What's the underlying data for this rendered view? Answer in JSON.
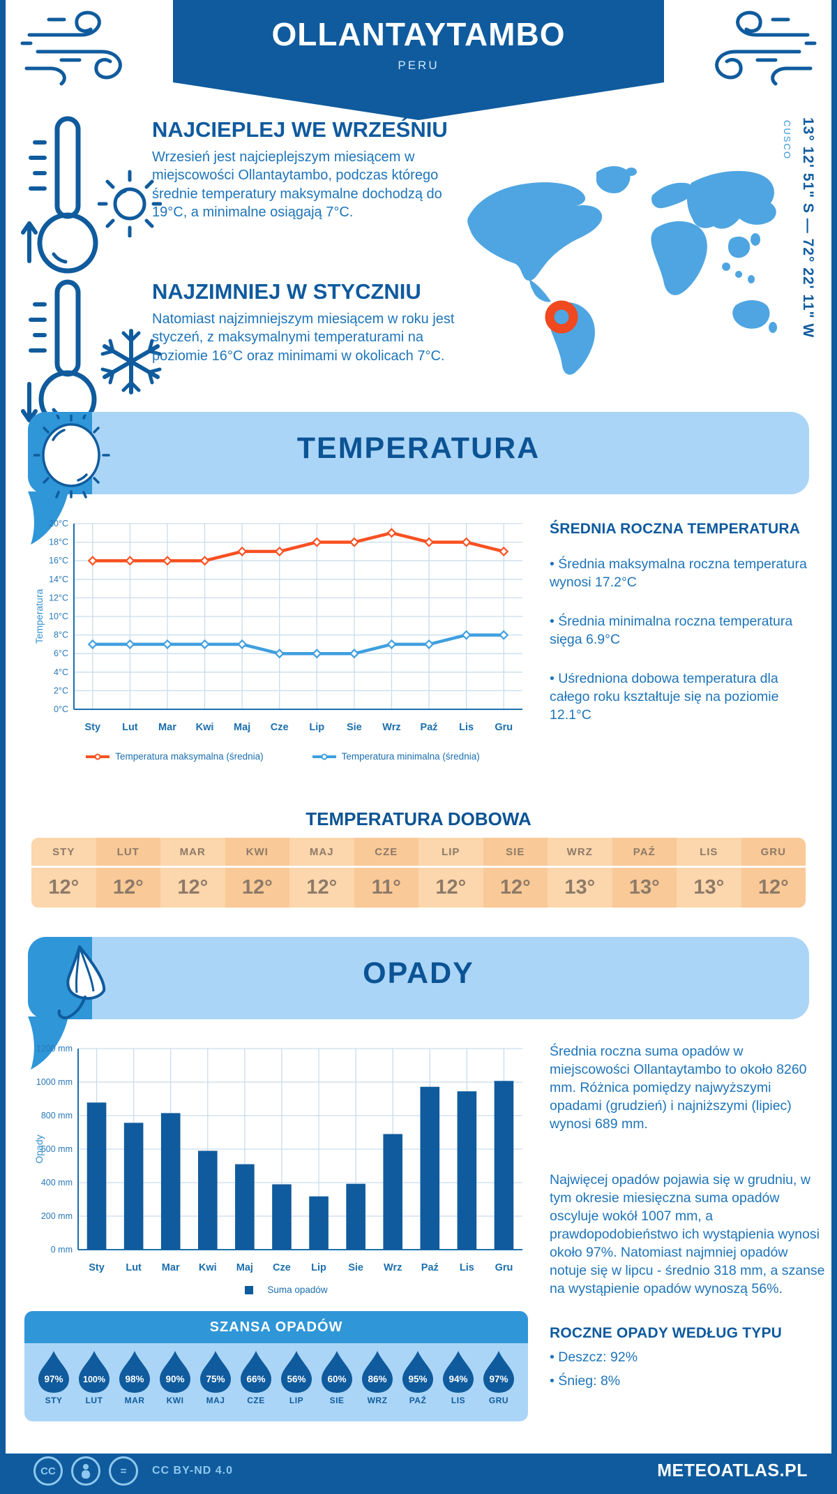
{
  "colors": {
    "primary_dark": "#0f5b9d",
    "banner_light": "#abd5f7",
    "banner_medium": "#2f96d8",
    "map_blue": "#4fa5e1",
    "marker_orange": "#f0481f",
    "line_max": "#f95021",
    "line_min": "#3e9fdf",
    "grid": "#c9dcec",
    "axis": "#1b6fae"
  },
  "header": {
    "title": "OLLANTAYTAMBO",
    "subtitle": "PERU"
  },
  "intro": {
    "warmest": {
      "title": "NAJCIEPLEJ WE WRZEŚNIU",
      "text": "Wrzesień jest najcieplejszym miesiącem w miejscowości Ollantaytambo, podczas którego średnie temperatury maksymalne dochodzą do 19°C, a minimalne osiągają 7°C."
    },
    "coldest": {
      "title": "NAJZIMNIEJ W STYCZNIU",
      "text": "Natomiast najzimniejszym miesiącem w roku jest styczeń, z maksymalnymi temperaturami na poziomie 16°C oraz minimami w okolicach 7°C."
    }
  },
  "map": {
    "region": "CUSCO",
    "coordinates": "13° 12' 51\" S — 72° 22' 11\" W"
  },
  "sections": {
    "temperature": "TEMPERATURA",
    "precipitation": "OPADY"
  },
  "annual_temperature": {
    "heading": "ŚREDNIA ROCZNA TEMPERATURA",
    "bullets": [
      "• Średnia maksymalna roczna temperatura wynosi 17.2°C",
      "• Średnia minimalna roczna temperatura sięga 6.9°C",
      "• Uśredniona dobowa temperatura dla całego roku kształtuje się na poziomie 12.1°C"
    ]
  },
  "precip_text": {
    "p1": "Średnia roczna suma opadów w miejscowości Ollantaytambo to około 8260 mm. Różnica pomiędzy najwyższymi opadami (grudzień) i najniższymi (lipiec) wynosi 689 mm.",
    "p2": "Najwięcej opadów pojawia się w grudniu, w tym okresie miesięczna suma opadów oscyluje wokół 1007 mm, a prawdopodobieństwo ich wystąpienia wynosi około 97%. Natomiast najmniej opadów notuje się w lipcu - średnio 318 mm, a szanse na wystąpienie opadów wynoszą 56%."
  },
  "precip_types": {
    "heading": "ROCZNE OPADY WEDŁUG TYPU",
    "bullets": [
      "• Deszcz: 92%",
      "• Śnieg: 8%"
    ]
  },
  "footer": {
    "license": "CC BY-ND 4.0",
    "site": "METEOATLAS.PL"
  },
  "chart_data": [
    {
      "id": "monthly-temperature",
      "type": "line",
      "categories": [
        "Sty",
        "Lut",
        "Mar",
        "Kwi",
        "Maj",
        "Cze",
        "Lip",
        "Sie",
        "Wrz",
        "Paź",
        "Lis",
        "Gru"
      ],
      "series": [
        {
          "name": "Temperatura maksymalna (średnia)",
          "color": "#f95021",
          "values": [
            16,
            16,
            16,
            16,
            17,
            17,
            18,
            18,
            19,
            18,
            18,
            17
          ]
        },
        {
          "name": "Temperatura minimalna (średnia)",
          "color": "#3e9fdf",
          "values": [
            7,
            7,
            7,
            7,
            7,
            6,
            6,
            6,
            7,
            7,
            8,
            8
          ]
        }
      ],
      "ylabel": "Temperatura",
      "yunit": "°C",
      "ylim": [
        0,
        20
      ],
      "ystep": 2,
      "grid": true,
      "legend_position": "bottom"
    },
    {
      "id": "daily-temperature",
      "type": "table",
      "title": "TEMPERATURA DOBOWA",
      "columns": [
        "STY",
        "LUT",
        "MAR",
        "KWI",
        "MAJ",
        "CZE",
        "LIP",
        "SIE",
        "WRZ",
        "PAŹ",
        "LIS",
        "GRU"
      ],
      "rows": [
        [
          "12°",
          "12°",
          "12°",
          "12°",
          "12°",
          "11°",
          "12°",
          "12°",
          "13°",
          "13°",
          "13°",
          "12°"
        ]
      ]
    },
    {
      "id": "monthly-precipitation",
      "type": "bar",
      "categories": [
        "Sty",
        "Lut",
        "Mar",
        "Kwi",
        "Maj",
        "Cze",
        "Lip",
        "Sie",
        "Wrz",
        "Paź",
        "Lis",
        "Gru"
      ],
      "series": [
        {
          "name": "Suma opadów",
          "color": "#0f5b9d",
          "values": [
            878,
            757,
            815,
            590,
            510,
            390,
            318,
            393,
            690,
            972,
            945,
            1007
          ]
        }
      ],
      "ylabel": "Opady",
      "yunit": " mm",
      "ylim": [
        0,
        1200
      ],
      "ystep": 200,
      "grid": true,
      "legend_position": "bottom"
    },
    {
      "id": "precipitation-chance",
      "type": "pictogram",
      "title": "SZANSA OPADÓW",
      "categories": [
        "STY",
        "LUT",
        "MAR",
        "KWI",
        "MAJ",
        "CZE",
        "LIP",
        "SIE",
        "WRZ",
        "PAŹ",
        "LIS",
        "GRU"
      ],
      "values": [
        97,
        100,
        98,
        90,
        75,
        66,
        56,
        60,
        86,
        95,
        94,
        97
      ],
      "unit": "%"
    }
  ]
}
